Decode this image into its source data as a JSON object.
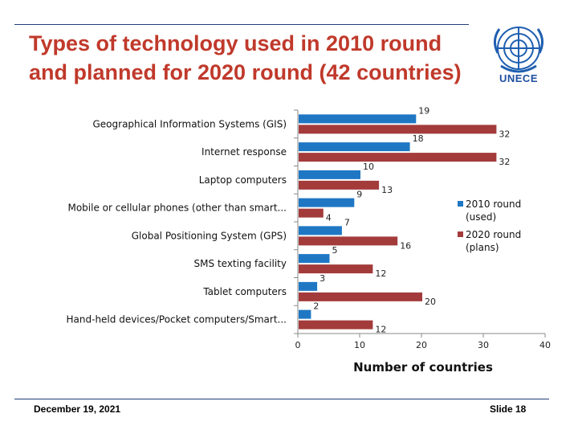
{
  "slide": {
    "title_line1": "Types of technology used in 2010 round",
    "title_line2": "and planned for 2020 round (42 countries)",
    "logo_text": "UNECE",
    "date": "December 19, 2021",
    "slide_label": "Slide 18"
  },
  "chart_data": {
    "type": "bar",
    "orientation": "horizontal",
    "title": "",
    "xlabel": "Number of countries",
    "ylabel": "",
    "xlim": [
      0,
      40
    ],
    "xticks": [
      0,
      10,
      20,
      30,
      40
    ],
    "grid": false,
    "legend_position": "right",
    "categories": [
      "Geographical Information Systems (GIS)",
      "Internet response",
      "Laptop computers",
      "Mobile or cellular phones (other than smart...",
      "Global Positioning System (GPS)",
      "SMS texting facility",
      "Tablet computers",
      "Hand-held devices/Pocket computers/Smart..."
    ],
    "series": [
      {
        "name": "2010 round (used)",
        "color": "#1f77c4",
        "values": [
          19,
          18,
          10,
          9,
          7,
          5,
          3,
          2
        ]
      },
      {
        "name": "2020 round (plans)",
        "color": "#a33b3b",
        "values": [
          32,
          32,
          13,
          4,
          16,
          12,
          20,
          12
        ]
      }
    ],
    "legend_lines": [
      [
        "2010 round",
        "(used)"
      ],
      [
        "2020 round",
        "(plans)"
      ]
    ]
  }
}
